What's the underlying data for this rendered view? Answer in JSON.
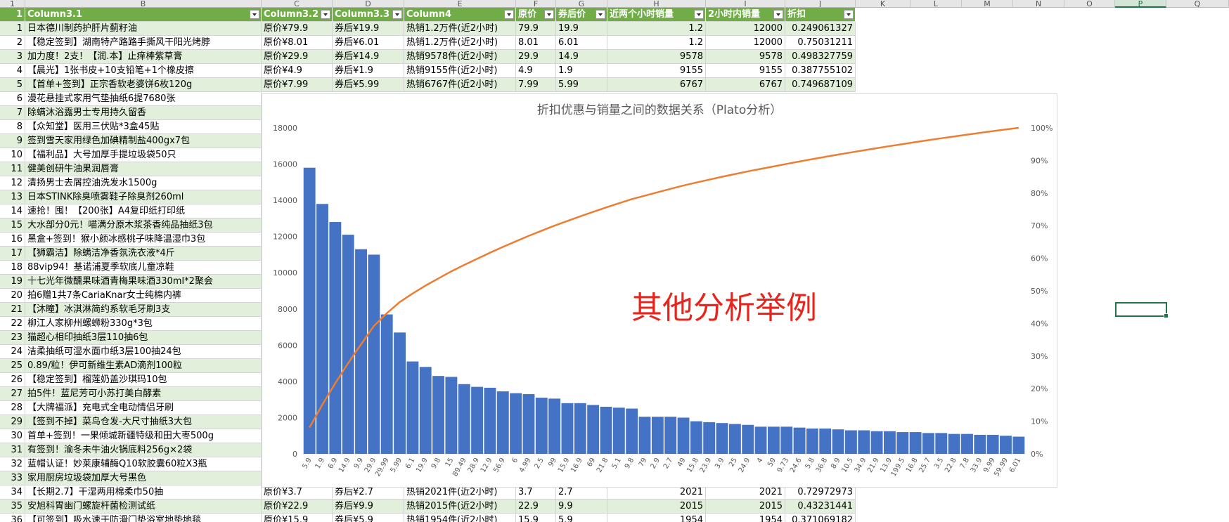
{
  "column_headers": [
    "1",
    "B",
    "C",
    "D",
    "E",
    "F",
    "G",
    "H",
    "I",
    "J",
    "K",
    "L",
    "M",
    "N",
    "O",
    "P",
    "Q"
  ],
  "selected_column": "P",
  "table_headers": [
    "Column3.1",
    "Column3.2",
    "Column3.3",
    "Column4",
    "原价",
    "券后价",
    "近两个小时销量",
    "2小时内销量",
    "折扣"
  ],
  "rows": [
    {
      "n": "1",
      "name": "日本德川制药护肝片蓟籽油",
      "c": "原价¥79.9",
      "d": "券后¥19.9",
      "e": "热销1.2万件(近2小时)",
      "f": "79.9",
      "g": "19.9",
      "h": "1.2",
      "i": "12000",
      "j": "0.249061327"
    },
    {
      "n": "2",
      "name": "【稳定签到】湖南特产路路手撕风干阳光烤脖",
      "c": "原价¥8.01",
      "d": "券后¥6.01",
      "e": "热销1.2万件(近2小时)",
      "f": "8.01",
      "g": "6.01",
      "h": "1.2",
      "i": "12000",
      "j": "0.75031211"
    },
    {
      "n": "3",
      "name": "加力度！2支！【润.本】止痒棒紫草膏",
      "c": "原价¥29.9",
      "d": "券后¥14.9",
      "e": "热销9578件(近2小时)",
      "f": "29.9",
      "g": "14.9",
      "h": "9578",
      "i": "9578",
      "j": "0.498327759"
    },
    {
      "n": "4",
      "name": "【晨光】1张书皮+10支铅笔+1个橡皮擦",
      "c": "原价¥4.9",
      "d": "券后¥1.9",
      "e": "热销9155件(近2小时)",
      "f": "4.9",
      "g": "1.9",
      "h": "9155",
      "i": "9155",
      "j": "0.387755102"
    },
    {
      "n": "5",
      "name": "【首单+签到】正宗香软老婆饼6枚120g",
      "c": "原价¥7.99",
      "d": "券后¥5.99",
      "e": "热销6767件(近2小时)",
      "f": "7.99",
      "g": "5.99",
      "h": "6767",
      "i": "6767",
      "j": "0.749687109"
    },
    {
      "n": "6",
      "name": "漫花悬挂式家用气垫抽纸6提7680张"
    },
    {
      "n": "7",
      "name": "除螨沐浴露男士专用持久留香"
    },
    {
      "n": "8",
      "name": "【众知堂】医用三伏贴*3盒45贴"
    },
    {
      "n": "9",
      "name": "签到雪天家用绿色加碘精制盐400gx7包"
    },
    {
      "n": "10",
      "name": "【福利品】大号加厚手提垃圾袋50只"
    },
    {
      "n": "11",
      "name": "健美创研牛油果润唇膏"
    },
    {
      "n": "12",
      "name": "清扬男士去屑控油洗发水1500g"
    },
    {
      "n": "13",
      "name": "日本STINK除臭喷雾鞋子除臭剂260ml"
    },
    {
      "n": "14",
      "name": "速抢！囤！【200张】A4复印纸打印纸"
    },
    {
      "n": "15",
      "name": "大水部分0元！喵满分原木浆茶香纯品抽纸3包"
    },
    {
      "n": "16",
      "name": "黑盒+签到！猴小颜冰感桃子味降温湿巾3包"
    },
    {
      "n": "17",
      "name": "【狮霸洁】除螨洁净香氛洗衣液*4斤"
    },
    {
      "n": "18",
      "name": "88vip94！基诺浦夏季软底儿童凉鞋"
    },
    {
      "n": "19",
      "name": "十七光年微醺果味酒青梅果味酒330ml*2聚会"
    },
    {
      "n": "20",
      "name": "拍6赠1共7条CariaKnar女士纯棉内裤"
    },
    {
      "n": "21",
      "name": "【沐瞳】冰淇淋简约系软毛牙刷3支"
    },
    {
      "n": "22",
      "name": "柳江人家柳州螺蛳粉330g*3包"
    },
    {
      "n": "23",
      "name": "猫超心相印抽纸3层110抽6包"
    },
    {
      "n": "24",
      "name": "洁柔抽纸可湿水面巾纸3层100抽24包"
    },
    {
      "n": "25",
      "name": "0.89/粒！伊可新维生素AD滴剂100粒"
    },
    {
      "n": "26",
      "name": "【稳定签到】榴莲奶盖沙琪玛10包"
    },
    {
      "n": "27",
      "name": "拍5件！蓝尼芳可小苏打美白酵素"
    },
    {
      "n": "28",
      "name": "【大牌福派】充电式全电动情侣牙刷"
    },
    {
      "n": "29",
      "name": "【签到不掉】菜鸟仓发-大尺寸抽纸3大包"
    },
    {
      "n": "30",
      "name": "首单+签到！一果倾城新疆特级和田大枣500g"
    },
    {
      "n": "31",
      "name": "有签到！渝冬未牛油火锅底料256g×2袋"
    },
    {
      "n": "32",
      "name": "蓝帽认证！妙莱康辅酶Q10软胶囊60粒X3瓶"
    },
    {
      "n": "33",
      "name": "家用厨房垃圾袋加厚大号黑色"
    },
    {
      "n": "34",
      "name": "【长期2.7】干湿两用棉柔巾50抽",
      "c": "原价¥3.7",
      "d": "券后¥2.7",
      "e": "热销2021件(近2小时)",
      "f": "3.7",
      "g": "2.7",
      "h": "2021",
      "i": "2021",
      "j": "0.72972973"
    },
    {
      "n": "35",
      "name": "安旭科胃幽门螺旋杆菌检测试纸",
      "c": "原价¥22.9",
      "d": "券后¥9.9",
      "e": "热销2015件(近2小时)",
      "f": "22.9",
      "g": "9.9",
      "h": "2015",
      "i": "2015",
      "j": "0.43231441"
    },
    {
      "n": "36",
      "name": "【可签到】吸水速干防滑门垫浴室地垫地毯",
      "c": "原价¥15.9",
      "d": "券后¥5.9",
      "e": "热销1954件(近2小时)",
      "f": "15.9",
      "g": "5.9",
      "h": "1954",
      "i": "1954",
      "j": "0.371069182"
    }
  ],
  "overlay_text": "其他分析举例",
  "colors": {
    "bar": "#4472c4",
    "line": "#ed7d31",
    "header_green": "#70ad47",
    "band": "#e2efda",
    "overlay": "#e8241c",
    "select": "#217346"
  },
  "chart_data": {
    "type": "bar",
    "title": "折扣优惠与销量之间的数据关系（Plato分析）",
    "categories": [
      "5.9",
      "1.9",
      "6.9",
      "14.9",
      "9.9",
      "29.9",
      "29.99",
      "5.99",
      "6.1",
      "19.9",
      "9.8",
      "15",
      "89.49",
      "28.9",
      "12.9",
      "56.9",
      "6",
      "4.99",
      "2.5",
      "99",
      "15.9",
      "16.9",
      "69",
      "21.8",
      "5.1",
      "9.8",
      "79",
      "2.9",
      "2.7",
      "49",
      "15.8",
      "23.9",
      "3.9",
      "25",
      "24.9",
      "4",
      "59",
      "9.73",
      "24.6",
      "5.8",
      "36.8",
      "8.9",
      "10.5",
      "34.9",
      "21.9",
      "13.9",
      "199.5",
      "16.8",
      "25.7",
      "3.5",
      "22.8",
      "7.8",
      "33.9",
      "9.99",
      "59.99",
      "6.01"
    ],
    "values": [
      15800,
      13800,
      12800,
      12100,
      11300,
      11000,
      7700,
      6700,
      5100,
      4800,
      4300,
      4250,
      3850,
      3700,
      3650,
      3450,
      3350,
      3300,
      3100,
      3050,
      2800,
      2800,
      2700,
      2600,
      2550,
      2500,
      2050,
      2050,
      2050,
      2000,
      1800,
      1750,
      1700,
      1650,
      1600,
      1500,
      1500,
      1500,
      1450,
      1400,
      1400,
      1350,
      1300,
      1300,
      1250,
      1250,
      1200,
      1200,
      1150,
      1150,
      1100,
      1100,
      1050,
      1050,
      1000,
      950
    ],
    "ylim": [
      0,
      18000
    ],
    "y_ticks": [
      "0",
      "2000",
      "4000",
      "6000",
      "8000",
      "10000",
      "12000",
      "14000",
      "16000",
      "18000"
    ],
    "y2lim": [
      0,
      100
    ],
    "y2_ticks": [
      "0%",
      "10%",
      "20%",
      "30%",
      "40%",
      "50%",
      "60%",
      "70%",
      "80%",
      "90%",
      "100%"
    ],
    "series": [
      {
        "type": "bar",
        "values_ref": "values"
      },
      {
        "type": "line",
        "axis": "secondary",
        "cumulative_percent": true
      }
    ],
    "grid": false
  }
}
